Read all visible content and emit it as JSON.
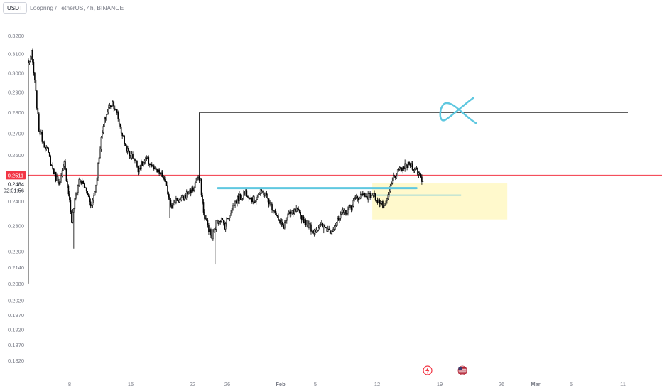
{
  "header": {
    "currency_button": "USDT",
    "symbol_title": "Loopring / TetherUS, 4h, BINANCE"
  },
  "price_labels": {
    "last_price": "0.2511",
    "current_price": "0.2484",
    "countdown": "02:01:56"
  },
  "colors": {
    "up_candle": "#ffffff",
    "down_candle": "#000000",
    "candle_outline": "#000000",
    "last_price_line": "#f23645",
    "support_line": "#5fc8e0",
    "target_line": "#000000",
    "zone_fill": "#fff9cc",
    "zone_line": "#a8dcd6",
    "axis_text": "#787b86"
  },
  "icons": {
    "event_flash": "flash-event-icon",
    "event_flag": "us-flag-event-icon"
  },
  "chart_data": {
    "type": "candlestick",
    "title": "Loopring / TetherUS, 4h, BINANCE",
    "y_scale": "log",
    "ylim": [
      0.178,
      0.328
    ],
    "y_ticks": [
      "0.3200",
      "0.3100",
      "0.3000",
      "0.2900",
      "0.2800",
      "0.2700",
      "0.2600",
      "0.2511",
      "0.2400",
      "0.2300",
      "0.2200",
      "0.2140",
      "0.2080",
      "0.2020",
      "0.1970",
      "0.1920",
      "0.1870",
      "0.1820"
    ],
    "x_ticks": [
      "8",
      "15",
      "22",
      "26",
      "Feb",
      "5",
      "12",
      "19",
      "26",
      "Mar",
      "5",
      "11"
    ],
    "grid": false,
    "legend": "none",
    "last_price": 0.2511,
    "current_price": 0.2484,
    "waypoints": [
      [
        0,
        0.305
      ],
      [
        3,
        0.31
      ],
      [
        6,
        0.295
      ],
      [
        10,
        0.272
      ],
      [
        14,
        0.266
      ],
      [
        18,
        0.262
      ],
      [
        22,
        0.255
      ],
      [
        26,
        0.25
      ],
      [
        30,
        0.248
      ],
      [
        34,
        0.256
      ],
      [
        38,
        0.244
      ],
      [
        41,
        0.232
      ],
      [
        44,
        0.24
      ],
      [
        48,
        0.249
      ],
      [
        52,
        0.247
      ],
      [
        56,
        0.243
      ],
      [
        60,
        0.238
      ],
      [
        64,
        0.247
      ],
      [
        68,
        0.264
      ],
      [
        72,
        0.276
      ],
      [
        76,
        0.282
      ],
      [
        80,
        0.285
      ],
      [
        84,
        0.279
      ],
      [
        88,
        0.271
      ],
      [
        92,
        0.264
      ],
      [
        96,
        0.26
      ],
      [
        100,
        0.259
      ],
      [
        104,
        0.254
      ],
      [
        108,
        0.256
      ],
      [
        112,
        0.258
      ],
      [
        116,
        0.256
      ],
      [
        120,
        0.253
      ],
      [
        124,
        0.252
      ],
      [
        128,
        0.25
      ],
      [
        132,
        0.244
      ],
      [
        136,
        0.238
      ],
      [
        140,
        0.241
      ],
      [
        144,
        0.24
      ],
      [
        148,
        0.242
      ],
      [
        152,
        0.244
      ],
      [
        156,
        0.245
      ],
      [
        160,
        0.25
      ],
      [
        163,
        0.248
      ],
      [
        166,
        0.235
      ],
      [
        170,
        0.23
      ],
      [
        174,
        0.225
      ],
      [
        178,
        0.231
      ],
      [
        182,
        0.233
      ],
      [
        186,
        0.23
      ],
      [
        190,
        0.234
      ],
      [
        194,
        0.238
      ],
      [
        198,
        0.241
      ],
      [
        202,
        0.242
      ],
      [
        206,
        0.244
      ],
      [
        210,
        0.242
      ],
      [
        214,
        0.24
      ],
      [
        218,
        0.243
      ],
      [
        222,
        0.244
      ],
      [
        226,
        0.242
      ],
      [
        230,
        0.238
      ],
      [
        234,
        0.236
      ],
      [
        238,
        0.231
      ],
      [
        242,
        0.23
      ],
      [
        246,
        0.234
      ],
      [
        250,
        0.235
      ],
      [
        254,
        0.236
      ],
      [
        258,
        0.234
      ],
      [
        262,
        0.232
      ],
      [
        266,
        0.23
      ],
      [
        270,
        0.228
      ],
      [
        274,
        0.229
      ],
      [
        278,
        0.23
      ],
      [
        282,
        0.229
      ],
      [
        286,
        0.228
      ],
      [
        290,
        0.23
      ],
      [
        294,
        0.232
      ],
      [
        298,
        0.235
      ],
      [
        302,
        0.236
      ],
      [
        306,
        0.238
      ],
      [
        310,
        0.241
      ],
      [
        314,
        0.242
      ],
      [
        318,
        0.243
      ],
      [
        322,
        0.242
      ],
      [
        326,
        0.243
      ],
      [
        330,
        0.241
      ],
      [
        334,
        0.239
      ],
      [
        338,
        0.237
      ],
      [
        342,
        0.244
      ],
      [
        346,
        0.25
      ],
      [
        350,
        0.252
      ],
      [
        354,
        0.254
      ],
      [
        358,
        0.255
      ],
      [
        362,
        0.256
      ],
      [
        366,
        0.254
      ],
      [
        370,
        0.252
      ],
      [
        374,
        0.2484
      ]
    ],
    "spike_wicks": [
      {
        "i": 0,
        "low": 0.208
      },
      {
        "i": 162,
        "high": 0.28
      },
      {
        "i": 177,
        "low": 0.215
      },
      {
        "i": 43,
        "low": 0.221
      },
      {
        "i": 134,
        "low": 0.233
      },
      {
        "i": 280,
        "low": 0.227
      },
      {
        "i": 357,
        "high": 0.258
      }
    ],
    "drawings": {
      "target_line": {
        "price": 0.28,
        "from_candle": 163
      },
      "support_line": {
        "price": 0.2455,
        "from_candle": 200,
        "to_candle": 415
      },
      "zone": {
        "top": 0.2475,
        "bottom": 0.2325,
        "from_candle": 326,
        "to_candle": 454
      }
    }
  }
}
